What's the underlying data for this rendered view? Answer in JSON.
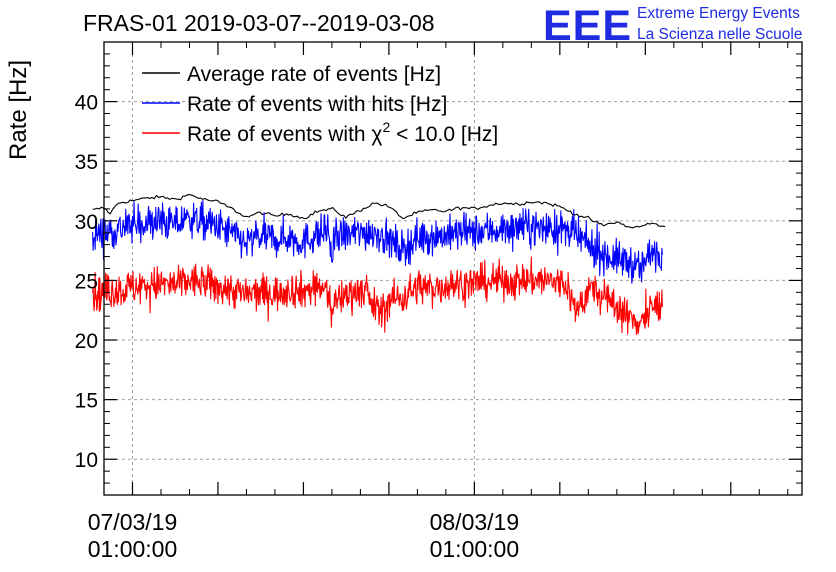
{
  "header": {
    "title": "FRAS-01 2019-03-07--2019-03-08"
  },
  "logo": {
    "mark": "EEE",
    "line1": "Extreme Energy Events",
    "line2": "La Scienza nelle Scuole",
    "color": "#1f2be0"
  },
  "chart_data": {
    "type": "line",
    "title": "FRAS-01 2019-03-07--2019-03-08",
    "xlabel": "",
    "ylabel": "Rate [Hz]",
    "xlim_hours": [
      -1.0,
      23.5
    ],
    "ylim": [
      7,
      45
    ],
    "yticks": [
      10,
      15,
      20,
      25,
      30,
      35,
      40
    ],
    "xticks": [
      {
        "hour": 0,
        "date": "07/03/19",
        "time": "01:00:00"
      },
      {
        "hour": 12,
        "date": "08/03/19",
        "time": "01:00:00"
      }
    ],
    "grid": true,
    "legend_position": "top-left",
    "series": [
      {
        "name": "Average rate of events [Hz]",
        "legend_main": "Average rate of events [Hz]",
        "color": "#000000",
        "style": "smooth",
        "keypoints": [
          [
            -1.4,
            30.9
          ],
          [
            -1.0,
            31.1
          ],
          [
            -0.8,
            30.6
          ],
          [
            -0.5,
            31.5
          ],
          [
            0.0,
            31.7
          ],
          [
            0.5,
            31.9
          ],
          [
            1.0,
            32.0
          ],
          [
            1.5,
            31.8
          ],
          [
            2.0,
            32.2
          ],
          [
            2.5,
            31.8
          ],
          [
            3.0,
            31.6
          ],
          [
            3.5,
            31.0
          ],
          [
            4.0,
            30.3
          ],
          [
            4.5,
            30.7
          ],
          [
            5.0,
            30.4
          ],
          [
            5.5,
            30.6
          ],
          [
            6.0,
            30.2
          ],
          [
            6.5,
            30.8
          ],
          [
            7.0,
            31.0
          ],
          [
            7.5,
            30.3
          ],
          [
            8.0,
            30.9
          ],
          [
            8.5,
            31.5
          ],
          [
            9.0,
            31.2
          ],
          [
            9.5,
            30.2
          ],
          [
            10.0,
            30.7
          ],
          [
            10.5,
            30.9
          ],
          [
            11.0,
            30.8
          ],
          [
            11.5,
            31.1
          ],
          [
            12.0,
            31.0
          ],
          [
            12.5,
            31.3
          ],
          [
            13.0,
            31.5
          ],
          [
            13.5,
            31.4
          ],
          [
            14.0,
            31.6
          ],
          [
            14.5,
            31.5
          ],
          [
            15.0,
            31.2
          ],
          [
            15.5,
            30.6
          ],
          [
            16.0,
            30.2
          ],
          [
            16.5,
            29.6
          ],
          [
            17.0,
            29.9
          ],
          [
            17.5,
            29.4
          ],
          [
            18.0,
            29.6
          ],
          [
            18.2,
            29.9
          ],
          [
            18.5,
            29.5
          ],
          [
            18.7,
            29.6
          ]
        ]
      },
      {
        "name": "Rate of events with hits [Hz]",
        "legend_main": "Rate of events with hits [Hz]",
        "color": "#0000ff",
        "style": "noisy",
        "noise": 0.75,
        "keypoints": [
          [
            -1.4,
            28.8
          ],
          [
            -1.0,
            29.0
          ],
          [
            -0.5,
            29.3
          ],
          [
            0.0,
            29.6
          ],
          [
            0.5,
            29.8
          ],
          [
            1.0,
            29.9
          ],
          [
            1.5,
            29.7
          ],
          [
            2.0,
            30.2
          ],
          [
            2.5,
            29.9
          ],
          [
            3.0,
            29.5
          ],
          [
            3.5,
            28.9
          ],
          [
            4.0,
            28.1
          ],
          [
            4.5,
            28.7
          ],
          [
            5.0,
            28.5
          ],
          [
            5.5,
            28.6
          ],
          [
            6.0,
            28.2
          ],
          [
            6.5,
            28.9
          ],
          [
            6.9,
            29.0
          ],
          [
            7.0,
            26.5
          ],
          [
            7.1,
            28.7
          ],
          [
            7.5,
            28.8
          ],
          [
            8.0,
            29.0
          ],
          [
            8.5,
            29.1
          ],
          [
            9.0,
            28.4
          ],
          [
            9.5,
            27.6
          ],
          [
            10.0,
            28.6
          ],
          [
            10.5,
            28.7
          ],
          [
            11.0,
            28.8
          ],
          [
            11.5,
            29.0
          ],
          [
            12.0,
            29.0
          ],
          [
            12.5,
            29.2
          ],
          [
            13.0,
            29.3
          ],
          [
            13.5,
            29.4
          ],
          [
            14.0,
            29.5
          ],
          [
            14.5,
            29.4
          ],
          [
            15.0,
            29.3
          ],
          [
            15.5,
            28.9
          ],
          [
            16.0,
            27.9
          ],
          [
            16.5,
            27.2
          ],
          [
            17.0,
            26.8
          ],
          [
            17.5,
            26.5
          ],
          [
            17.8,
            25.8
          ],
          [
            18.0,
            26.6
          ],
          [
            18.3,
            27.5
          ],
          [
            18.6,
            27.5
          ]
        ]
      },
      {
        "name": "Rate of events with χ2 < 10.0 [Hz]",
        "legend_main": "Rate of events with χ",
        "legend_sup": "2",
        "legend_rest": " < 10.0 [Hz]",
        "color": "#ff0000",
        "style": "noisy",
        "noise": 0.75,
        "keypoints": [
          [
            -1.4,
            23.8
          ],
          [
            -1.0,
            24.0
          ],
          [
            -0.5,
            24.2
          ],
          [
            0.0,
            24.4
          ],
          [
            0.5,
            24.6
          ],
          [
            1.0,
            24.7
          ],
          [
            1.5,
            24.6
          ],
          [
            2.0,
            25.0
          ],
          [
            2.5,
            24.8
          ],
          [
            3.0,
            24.4
          ],
          [
            3.5,
            24.2
          ],
          [
            4.0,
            23.8
          ],
          [
            4.5,
            24.0
          ],
          [
            5.0,
            23.9
          ],
          [
            5.5,
            24.3
          ],
          [
            6.0,
            24.1
          ],
          [
            6.5,
            24.5
          ],
          [
            6.9,
            23.8
          ],
          [
            7.0,
            22.0
          ],
          [
            7.1,
            23.3
          ],
          [
            7.5,
            23.8
          ],
          [
            8.0,
            24.3
          ],
          [
            8.5,
            22.8
          ],
          [
            8.8,
            22.2
          ],
          [
            9.0,
            23.4
          ],
          [
            9.5,
            23.6
          ],
          [
            10.0,
            24.5
          ],
          [
            10.5,
            24.3
          ],
          [
            11.0,
            24.6
          ],
          [
            11.5,
            24.7
          ],
          [
            12.0,
            24.8
          ],
          [
            12.5,
            24.9
          ],
          [
            13.0,
            25.0
          ],
          [
            13.5,
            24.9
          ],
          [
            14.0,
            25.1
          ],
          [
            14.5,
            25.0
          ],
          [
            15.0,
            24.8
          ],
          [
            15.3,
            24.5
          ],
          [
            15.5,
            22.5
          ],
          [
            15.8,
            23.2
          ],
          [
            16.0,
            24.3
          ],
          [
            16.3,
            24.0
          ],
          [
            16.5,
            23.5
          ],
          [
            17.0,
            23.0
          ],
          [
            17.3,
            22.0
          ],
          [
            17.6,
            21.6
          ],
          [
            18.0,
            21.8
          ],
          [
            18.3,
            22.8
          ],
          [
            18.6,
            23.0
          ]
        ]
      }
    ]
  }
}
